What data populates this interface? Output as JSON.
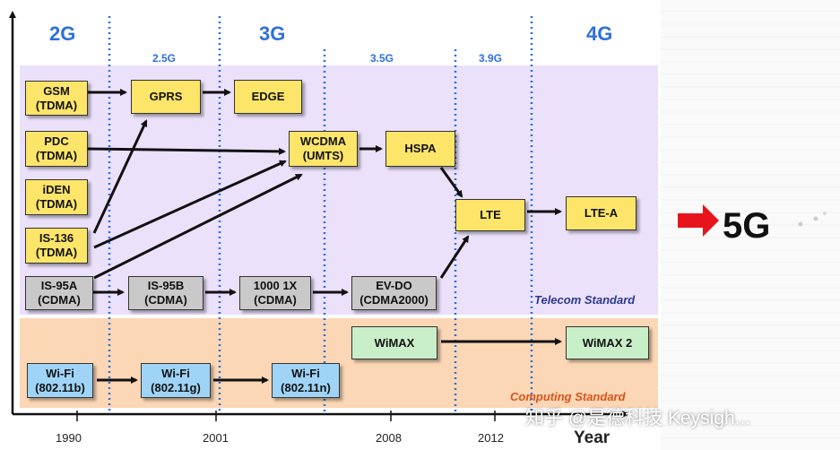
{
  "generations": {
    "g2": "2G",
    "g25": "2.5G",
    "g3": "3G",
    "g35": "3.5G",
    "g39": "3.9G",
    "g4": "4G"
  },
  "boxes": {
    "gsm": "GSM\n(TDMA)",
    "gprs": "GPRS",
    "edge": "EDGE",
    "pdc": "PDC\n(TDMA)",
    "wcdma": "WCDMA\n(UMTS)",
    "hspa": "HSPA",
    "iden": "iDEN\n(TDMA)",
    "is136": "IS-136\n(TDMA)",
    "lte": "LTE",
    "ltea": "LTE-A",
    "is95a": "IS-95A\n(CDMA)",
    "is95b": "IS-95B\n(CDMA)",
    "cdma1x": "1000 1X\n(CDMA)",
    "evdo": "EV-DO\n(CDMA2000)",
    "wimax": "WiMAX",
    "wimax2": "WiMAX 2",
    "wifi_b": "Wi-Fi\n(802.11b)",
    "wifi_g": "Wi-Fi\n(802.11g)",
    "wifi_n": "Wi-Fi\n(802.11n)"
  },
  "bands": {
    "telecom": "Telecom Standard",
    "computing": "Computing Standard"
  },
  "axis": {
    "ticks": [
      "1990",
      "2001",
      "2008",
      "2012"
    ],
    "label": "Year"
  },
  "next_gen": "5G",
  "watermark": "知乎 @是德科技 Keysigh...",
  "colors": {
    "band_telecom": "#ebe1fb",
    "band_computing": "#fbd7b5",
    "gen_label": "#2f6fdc",
    "arrow": "#111111",
    "accent_red": "#e8141b"
  }
}
